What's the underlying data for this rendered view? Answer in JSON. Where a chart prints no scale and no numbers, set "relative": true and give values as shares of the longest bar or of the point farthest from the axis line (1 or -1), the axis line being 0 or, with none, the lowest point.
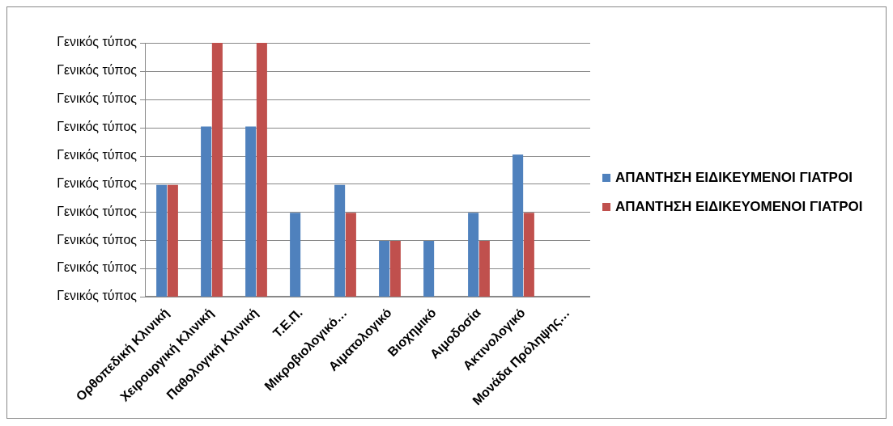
{
  "chart_data": {
    "type": "bar",
    "relative": true,
    "categories": [
      "Ορθοπεδική Κλινική",
      "Χειρουργική Κλινική",
      "Παθολογική Κλινική",
      "Τ.Ε.Π.",
      "Μικροβιολογικό…",
      "Αιματολογικό",
      "Βιοχημικό",
      "Αιμοδοσία",
      "Ακτινολογικό",
      "Μονάδα Πρόληψης…"
    ],
    "series": [
      {
        "name": "ΑΠΑΝΤΗΣΗ ΕΙΔΙΚΕΥΜΕΝΟΙ ΓΙΑΤΡΟΙ",
        "color": "#4f81bd",
        "values": [
          0.44,
          0.67,
          0.67,
          0.33,
          0.44,
          0.22,
          0.22,
          0.33,
          0.56,
          0
        ]
      },
      {
        "name": "ΑΠΑΝΤΗΣΗ ΕΙΔΙΚΕΥΟΜΕΝΟΙ ΓΙΑΤΡΟΙ",
        "color": "#c0504d",
        "values": [
          0.44,
          1,
          1,
          0,
          0.33,
          0.22,
          0,
          0.22,
          0.33,
          0
        ]
      }
    ],
    "annotations": [
      "Γενικός τύπος",
      "Γενικός τύπος",
      "Γενικός τύπος",
      "Γενικός τύπος",
      "Γενικός τύπος",
      "Γενικός τύπος",
      "Γενικός τύπος",
      "Γενικός τύπος",
      "Γενικός τύπος",
      "Γενικός τύπος"
    ],
    "grid": "y",
    "legend": "right"
  }
}
